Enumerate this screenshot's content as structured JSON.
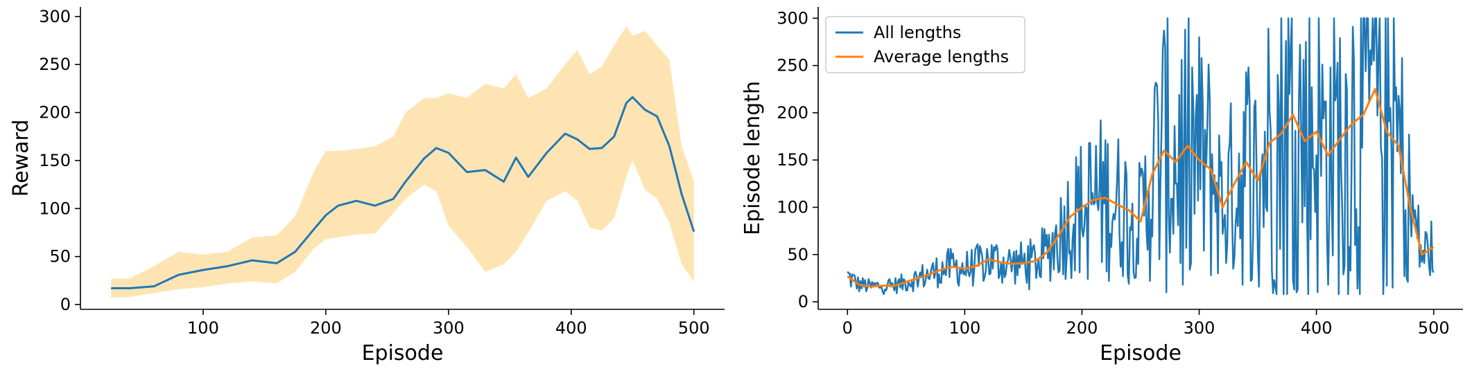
{
  "chart_data": [
    {
      "type": "line",
      "xlabel": "Episode",
      "ylabel": "Reward",
      "xlim": [
        0,
        525
      ],
      "ylim": [
        -5,
        310
      ],
      "xticks": [
        100,
        200,
        300,
        400,
        500
      ],
      "yticks": [
        0,
        50,
        100,
        150,
        200,
        250,
        300
      ],
      "colors": {
        "line": "#1f77b4",
        "band": "#ffe4b3"
      },
      "series": [
        {
          "x": [
            25,
            40,
            60,
            80,
            100,
            120,
            140,
            160,
            175,
            190,
            200,
            210,
            225,
            240,
            255,
            265,
            280,
            290,
            300,
            315,
            330,
            345,
            355,
            365,
            380,
            395,
            405,
            415,
            425,
            435,
            445,
            450,
            460,
            470,
            480,
            490,
            500
          ],
          "y": [
            17,
            17,
            19,
            31,
            36,
            40,
            46,
            43,
            55,
            78,
            93,
            103,
            108,
            103,
            110,
            128,
            152,
            163,
            158,
            138,
            140,
            128,
            153,
            133,
            158,
            178,
            172,
            162,
            163,
            175,
            210,
            216,
            203,
            196,
            165,
            115,
            76
          ],
          "lower": [
            7,
            8,
            12,
            16,
            18,
            22,
            24,
            22,
            34,
            58,
            68,
            70,
            73,
            74,
            95,
            110,
            125,
            118,
            82,
            60,
            34,
            42,
            55,
            75,
            108,
            118,
            108,
            80,
            77,
            90,
            133,
            150,
            120,
            110,
            85,
            42,
            24
          ],
          "upper": [
            27,
            27,
            40,
            55,
            52,
            55,
            70,
            72,
            92,
            138,
            160,
            160,
            162,
            165,
            175,
            200,
            215,
            215,
            220,
            215,
            230,
            225,
            240,
            215,
            225,
            250,
            265,
            240,
            248,
            270,
            290,
            280,
            285,
            270,
            255,
            165,
            128
          ]
        }
      ]
    },
    {
      "type": "line",
      "xlabel": "Episode",
      "ylabel": "Episode length",
      "xlim": [
        -25,
        525
      ],
      "ylim": [
        -8,
        312
      ],
      "xticks": [
        0,
        100,
        200,
        300,
        400,
        500
      ],
      "yticks": [
        0,
        50,
        100,
        150,
        200,
        250,
        300
      ],
      "legend_position": "top-left",
      "series": [
        {
          "name": "All lengths",
          "color": "#1f77b4"
        },
        {
          "name": "Average lengths",
          "color": "#ff7f0e",
          "x": [
            0,
            10,
            20,
            30,
            40,
            50,
            60,
            70,
            80,
            90,
            100,
            110,
            120,
            130,
            140,
            150,
            160,
            170,
            180,
            190,
            200,
            210,
            220,
            230,
            240,
            250,
            260,
            270,
            280,
            290,
            300,
            310,
            320,
            330,
            340,
            350,
            360,
            370,
            380,
            390,
            400,
            410,
            420,
            430,
            440,
            450,
            460,
            470,
            480,
            490,
            500
          ],
          "y": [
            27,
            18,
            16,
            17,
            17,
            21,
            25,
            29,
            34,
            37,
            35,
            38,
            45,
            42,
            40,
            41,
            43,
            52,
            70,
            90,
            100,
            108,
            110,
            103,
            97,
            85,
            135,
            160,
            148,
            165,
            150,
            140,
            100,
            125,
            148,
            128,
            168,
            178,
            198,
            170,
            180,
            155,
            172,
            188,
            198,
            225,
            180,
            165,
            100,
            50,
            58
          ]
        }
      ]
    }
  ]
}
